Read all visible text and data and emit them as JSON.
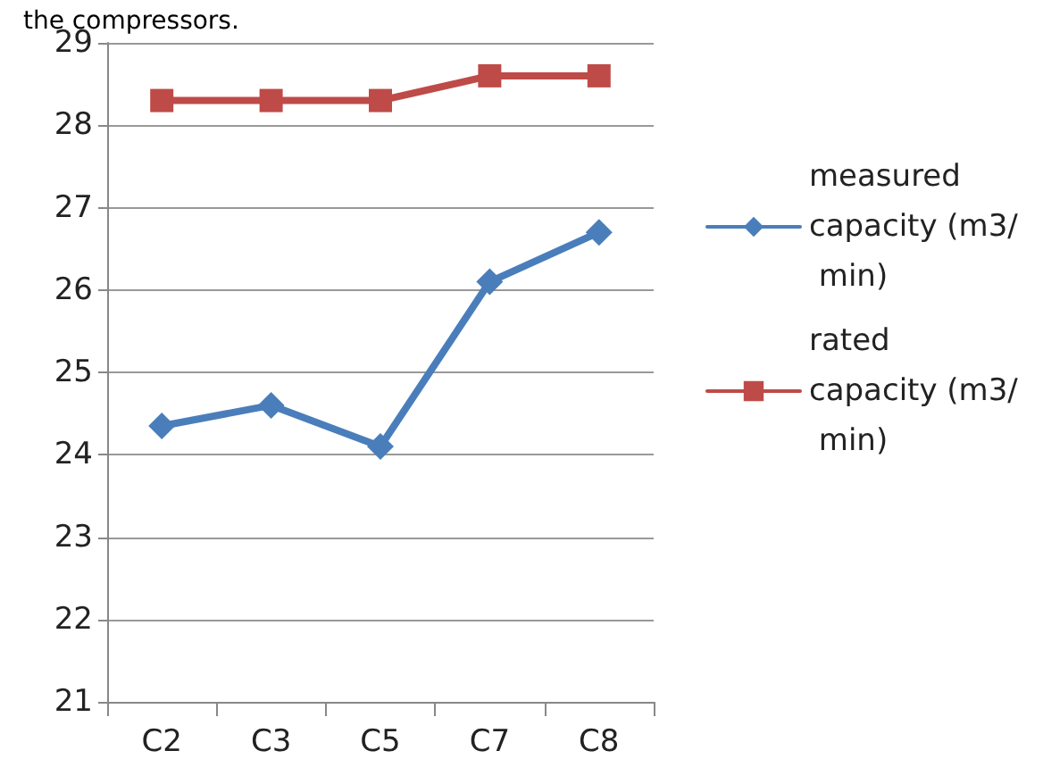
{
  "chart_data": {
    "type": "line",
    "annotations": [
      "the compressors."
    ],
    "categories": [
      "C2",
      "C3",
      "C5",
      "C7",
      "C8"
    ],
    "series": [
      {
        "name": "measured capacity (m3/ min)",
        "color": "#4a7ebb",
        "marker": "diamond",
        "values": [
          24.35,
          24.6,
          24.1,
          26.1,
          26.7
        ]
      },
      {
        "name": "rated capacity (m3/ min)",
        "color": "#be4b48",
        "marker": "square",
        "values": [
          28.3,
          28.3,
          28.3,
          28.6,
          28.6
        ]
      }
    ],
    "ylim": [
      21,
      29
    ],
    "yticks": [
      21,
      22,
      23,
      24,
      25,
      26,
      27,
      28,
      29
    ],
    "grid": "y",
    "legend": "right",
    "line_style": "solid"
  }
}
